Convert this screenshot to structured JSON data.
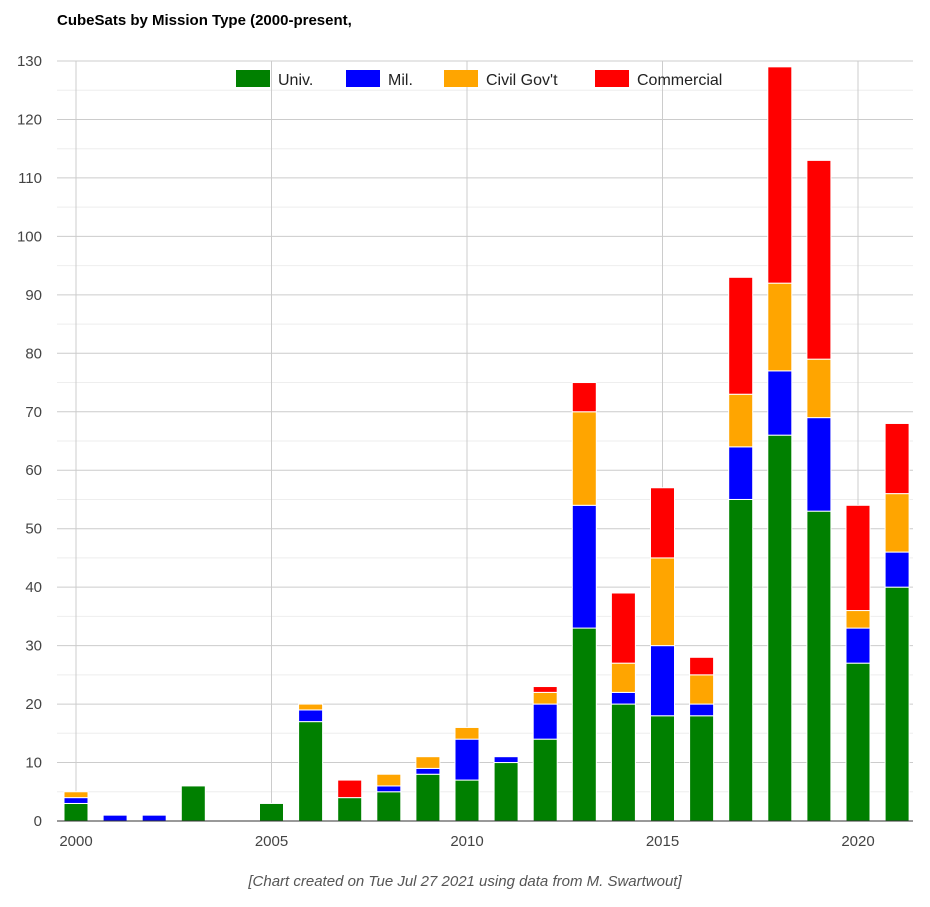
{
  "chart_data": {
    "type": "bar",
    "stacked": true,
    "title": "CubeSats by Mission Type (2000-present,",
    "caption": "[Chart created on Tue Jul 27 2021 using data from M. Swartwout]",
    "xlabel": "",
    "ylabel": "",
    "ylim": [
      0,
      130
    ],
    "yticks": [
      0,
      10,
      20,
      30,
      40,
      50,
      60,
      70,
      80,
      90,
      100,
      110,
      120,
      130
    ],
    "xticks": [
      2000,
      2005,
      2010,
      2015,
      2020
    ],
    "grid": true,
    "legend_position": "top",
    "categories": [
      2000,
      2001,
      2002,
      2003,
      2004,
      2005,
      2006,
      2007,
      2008,
      2009,
      2010,
      2011,
      2012,
      2013,
      2014,
      2015,
      2016,
      2017,
      2018,
      2019,
      2020,
      2021
    ],
    "series": [
      {
        "name": "Univ.",
        "color": "#008000",
        "values": [
          3,
          0,
          0,
          6,
          0,
          3,
          17,
          4,
          5,
          8,
          7,
          10,
          14,
          33,
          20,
          18,
          18,
          55,
          66,
          53,
          27,
          40
        ]
      },
      {
        "name": "Mil.",
        "color": "#0000ff",
        "values": [
          1,
          1,
          1,
          0,
          0,
          0,
          2,
          0,
          1,
          1,
          7,
          1,
          6,
          21,
          2,
          12,
          2,
          9,
          11,
          16,
          6,
          6
        ]
      },
      {
        "name": "Civil Gov't",
        "color": "#ffa500",
        "values": [
          1,
          0,
          0,
          0,
          0,
          0,
          1,
          0,
          2,
          2,
          2,
          0,
          2,
          16,
          5,
          15,
          5,
          9,
          15,
          10,
          3,
          10
        ]
      },
      {
        "name": "Commercial",
        "color": "#ff0000",
        "values": [
          0,
          0,
          0,
          0,
          0,
          0,
          0,
          3,
          0,
          0,
          0,
          0,
          1,
          5,
          12,
          12,
          3,
          20,
          37,
          34,
          18,
          12
        ]
      }
    ]
  }
}
